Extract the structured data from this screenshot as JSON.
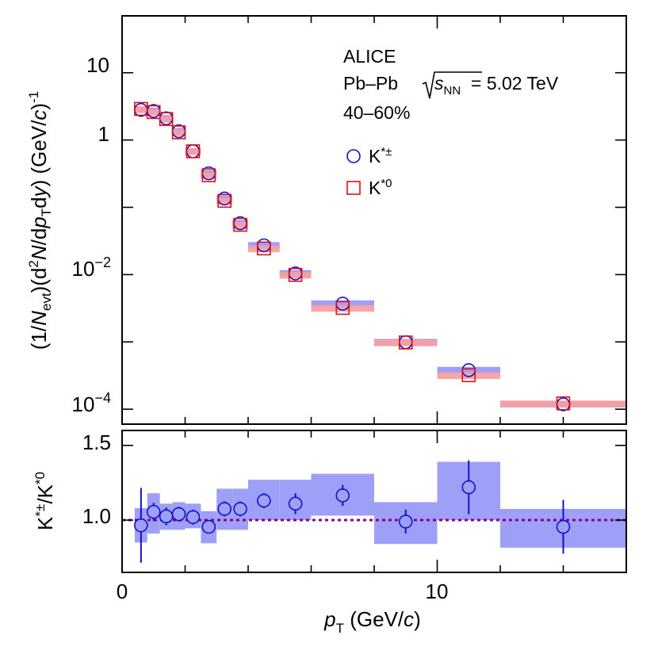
{
  "annotation": {
    "experiment": "ALICE",
    "system": "Pb–Pb",
    "energy_value": "= 5.02 TeV",
    "centrality": "40–60%"
  },
  "legend": {
    "kstar_charged": "K*±",
    "kstar_neutral": "K*0"
  },
  "colors": {
    "kstar_charged": "#1010d0",
    "kstar_neutral": "#e01010",
    "kstar_charged_syst": "#9ea0f8",
    "kstar_neutral_syst": "#f7a0a0",
    "reference_line": "#8b008b"
  },
  "chart_data": [
    {
      "type": "scatter",
      "panel": "spectra",
      "y_scale": "log",
      "xlabel": "pT (GeV/c)",
      "ylabel": "(1/Nevt)(d2N/dpTdy) (GeV/c)-1",
      "xlim": [
        0,
        16
      ],
      "ylim": [
        6e-05,
        70
      ],
      "yticks": [
        "10",
        "1",
        "10−2",
        "10−4"
      ],
      "x": [
        0.6,
        1.0,
        1.4,
        1.8,
        2.25,
        2.75,
        3.25,
        3.75,
        4.5,
        5.5,
        7.0,
        9.0,
        11.0,
        14.0
      ],
      "x_bin_edges": [
        [
          0.4,
          0.8
        ],
        [
          0.8,
          1.2
        ],
        [
          1.2,
          1.6
        ],
        [
          1.6,
          2.0
        ],
        [
          2.0,
          2.5
        ],
        [
          2.5,
          3.0
        ],
        [
          3.0,
          3.5
        ],
        [
          3.5,
          4.0
        ],
        [
          4.0,
          5.0
        ],
        [
          5.0,
          6.0
        ],
        [
          6.0,
          8.0
        ],
        [
          8.0,
          10.0
        ],
        [
          10.0,
          12.0
        ],
        [
          12.0,
          16.0
        ]
      ],
      "series": [
        {
          "name": "K*±",
          "marker": "open-circle",
          "values": [
            2.8,
            2.7,
            2.1,
            1.35,
            0.68,
            0.32,
            0.135,
            0.058,
            0.0272,
            0.0104,
            0.0037,
            0.00099,
            0.00038,
            0.000118
          ]
        },
        {
          "name": "K*0",
          "marker": "open-square",
          "values": [
            2.9,
            2.6,
            2.05,
            1.3,
            0.68,
            0.3,
            0.125,
            0.055,
            0.0245,
            0.0099,
            0.0032,
            0.00098,
            0.00032,
            0.000122
          ]
        }
      ]
    },
    {
      "type": "scatter",
      "panel": "ratio",
      "xlabel": "pT (GeV/c)",
      "ylabel": "K*±/K*0",
      "xlim": [
        0,
        16
      ],
      "ylim": [
        0.65,
        1.6
      ],
      "yticks": [
        1.0,
        1.5
      ],
      "xticks": [
        0,
        10
      ],
      "reference_line": 1.0,
      "x": [
        0.6,
        1.0,
        1.4,
        1.8,
        2.25,
        2.75,
        3.25,
        3.75,
        4.5,
        5.5,
        7.0,
        9.0,
        11.0,
        14.0
      ],
      "x_bin_edges": [
        [
          0.4,
          0.8
        ],
        [
          0.8,
          1.2
        ],
        [
          1.2,
          1.6
        ],
        [
          1.6,
          2.0
        ],
        [
          2.0,
          2.5
        ],
        [
          2.5,
          3.0
        ],
        [
          3.0,
          3.5
        ],
        [
          3.5,
          4.0
        ],
        [
          4.0,
          5.0
        ],
        [
          5.0,
          6.0
        ],
        [
          6.0,
          8.0
        ],
        [
          8.0,
          10.0
        ],
        [
          10.0,
          12.0
        ],
        [
          12.0,
          16.0
        ]
      ],
      "series": [
        {
          "name": "K*±/K*0",
          "values": [
            0.965,
            1.055,
            1.025,
            1.04,
            1.02,
            0.955,
            1.075,
            1.075,
            1.13,
            1.11,
            1.165,
            0.99,
            1.22,
            0.955
          ],
          "stat_err": [
            0.25,
            0.06,
            0.06,
            0.05,
            0.05,
            0.04,
            0.05,
            0.05,
            0.05,
            0.07,
            0.07,
            0.08,
            0.18,
            0.18
          ],
          "syst_low": [
            0.85,
            0.91,
            0.935,
            0.935,
            0.945,
            0.845,
            0.935,
            0.935,
            1.0,
            1.0,
            1.03,
            0.84,
            1.0,
            0.815
          ],
          "syst_high": [
            1.08,
            1.18,
            1.11,
            1.12,
            1.11,
            1.06,
            1.21,
            1.21,
            1.27,
            1.27,
            1.31,
            1.12,
            1.39,
            1.075
          ]
        }
      ]
    }
  ]
}
